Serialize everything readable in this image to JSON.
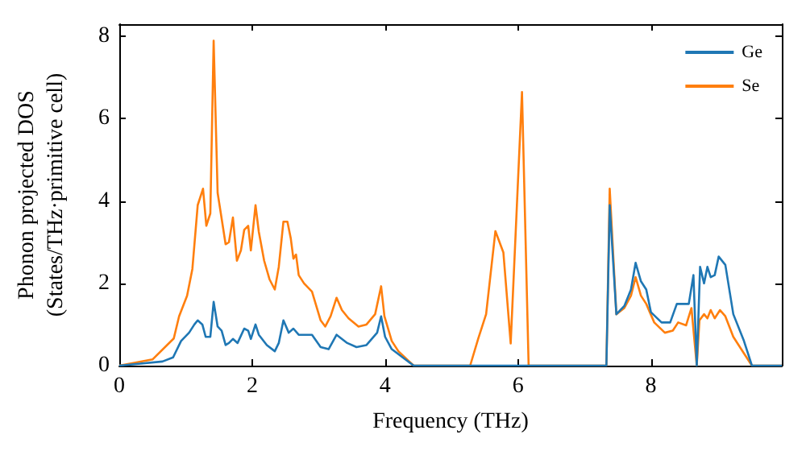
{
  "chart_data": {
    "type": "line",
    "xlabel": "Frequency (THz)",
    "ylabel": "Phonon projected DOS\n(States/THz·primitive cell)",
    "xlim": [
      0,
      9.97
    ],
    "ylim": [
      0,
      8.3
    ],
    "xticks": [
      0,
      2,
      4,
      6,
      8
    ],
    "yticks": [
      0,
      2,
      4,
      6,
      8
    ],
    "grid": false,
    "legend": "top right",
    "marker": "none",
    "line_style": "solid",
    "series": [
      {
        "name": "Ge",
        "color": "#1f77b4",
        "x": [
          0,
          0.65,
          0.81,
          0.93,
          1.05,
          1.13,
          1.18,
          1.25,
          1.3,
          1.37,
          1.42,
          1.48,
          1.54,
          1.6,
          1.65,
          1.71,
          1.78,
          1.88,
          1.94,
          1.98,
          2.05,
          2.1,
          2.22,
          2.34,
          2.4,
          2.47,
          2.55,
          2.62,
          2.7,
          2.9,
          3.03,
          3.15,
          3.27,
          3.43,
          3.57,
          3.72,
          3.88,
          3.94,
          4.0,
          4.1,
          4.43,
          7.33,
          7.38,
          7.48,
          7.6,
          7.7,
          7.77,
          7.85,
          7.93,
          8.0,
          8.16,
          8.29,
          8.39,
          8.57,
          8.64,
          8.69,
          8.74,
          8.8,
          8.85,
          8.9,
          8.96,
          9.02,
          9.12,
          9.24,
          9.4,
          9.52,
          9.97
        ],
        "values": [
          0,
          0.1,
          0.2,
          0.6,
          0.8,
          1.0,
          1.1,
          1.0,
          0.7,
          0.7,
          1.55,
          0.95,
          0.85,
          0.5,
          0.55,
          0.65,
          0.55,
          0.9,
          0.85,
          0.65,
          1.0,
          0.75,
          0.5,
          0.35,
          0.55,
          1.1,
          0.8,
          0.9,
          0.75,
          0.75,
          0.45,
          0.4,
          0.75,
          0.55,
          0.45,
          0.5,
          0.8,
          1.2,
          0.7,
          0.4,
          0,
          0,
          3.9,
          1.25,
          1.45,
          1.85,
          2.5,
          2.05,
          1.85,
          1.3,
          1.05,
          1.05,
          1.5,
          1.5,
          2.2,
          0,
          2.4,
          2.0,
          2.4,
          2.15,
          2.2,
          2.65,
          2.45,
          1.25,
          0.6,
          0,
          0
        ]
      },
      {
        "name": "Se",
        "color": "#ff7f0e",
        "x": [
          0,
          0.5,
          0.82,
          0.9,
          1.02,
          1.1,
          1.18,
          1.26,
          1.31,
          1.37,
          1.42,
          1.48,
          1.6,
          1.65,
          1.71,
          1.77,
          1.83,
          1.88,
          1.94,
          1.98,
          2.05,
          2.1,
          2.18,
          2.26,
          2.34,
          2.4,
          2.47,
          2.53,
          2.58,
          2.62,
          2.66,
          2.7,
          2.78,
          2.9,
          3.03,
          3.1,
          3.18,
          3.27,
          3.35,
          3.45,
          3.6,
          3.72,
          3.85,
          3.94,
          3.99,
          4.1,
          4.2,
          4.43,
          5.28,
          5.4,
          5.52,
          5.66,
          5.78,
          5.89,
          6.06,
          6.16,
          7.33,
          7.38,
          7.48,
          7.6,
          7.7,
          7.77,
          7.85,
          7.93,
          8.05,
          8.21,
          8.33,
          8.41,
          8.53,
          8.61,
          8.69,
          8.73,
          8.8,
          8.85,
          8.9,
          8.96,
          9.04,
          9.12,
          9.24,
          9.4,
          9.52,
          9.97
        ],
        "values": [
          0,
          0.15,
          0.66,
          1.2,
          1.7,
          2.35,
          3.9,
          4.3,
          3.4,
          3.7,
          7.9,
          4.2,
          2.95,
          3.0,
          3.6,
          2.55,
          2.8,
          3.3,
          3.4,
          2.8,
          3.9,
          3.25,
          2.55,
          2.1,
          1.85,
          2.4,
          3.5,
          3.5,
          3.1,
          2.6,
          2.7,
          2.2,
          2.0,
          1.8,
          1.1,
          0.95,
          1.2,
          1.65,
          1.35,
          1.15,
          0.95,
          1.0,
          1.25,
          1.93,
          1.2,
          0.6,
          0.35,
          0,
          0,
          0.65,
          1.25,
          3.27,
          2.75,
          0.54,
          6.65,
          0,
          0,
          4.3,
          1.25,
          1.4,
          1.7,
          2.15,
          1.7,
          1.5,
          1.05,
          0.8,
          0.85,
          1.05,
          0.98,
          1.4,
          0,
          1.1,
          1.25,
          1.15,
          1.35,
          1.15,
          1.35,
          1.2,
          0.7,
          0.3,
          0,
          0
        ]
      }
    ]
  }
}
